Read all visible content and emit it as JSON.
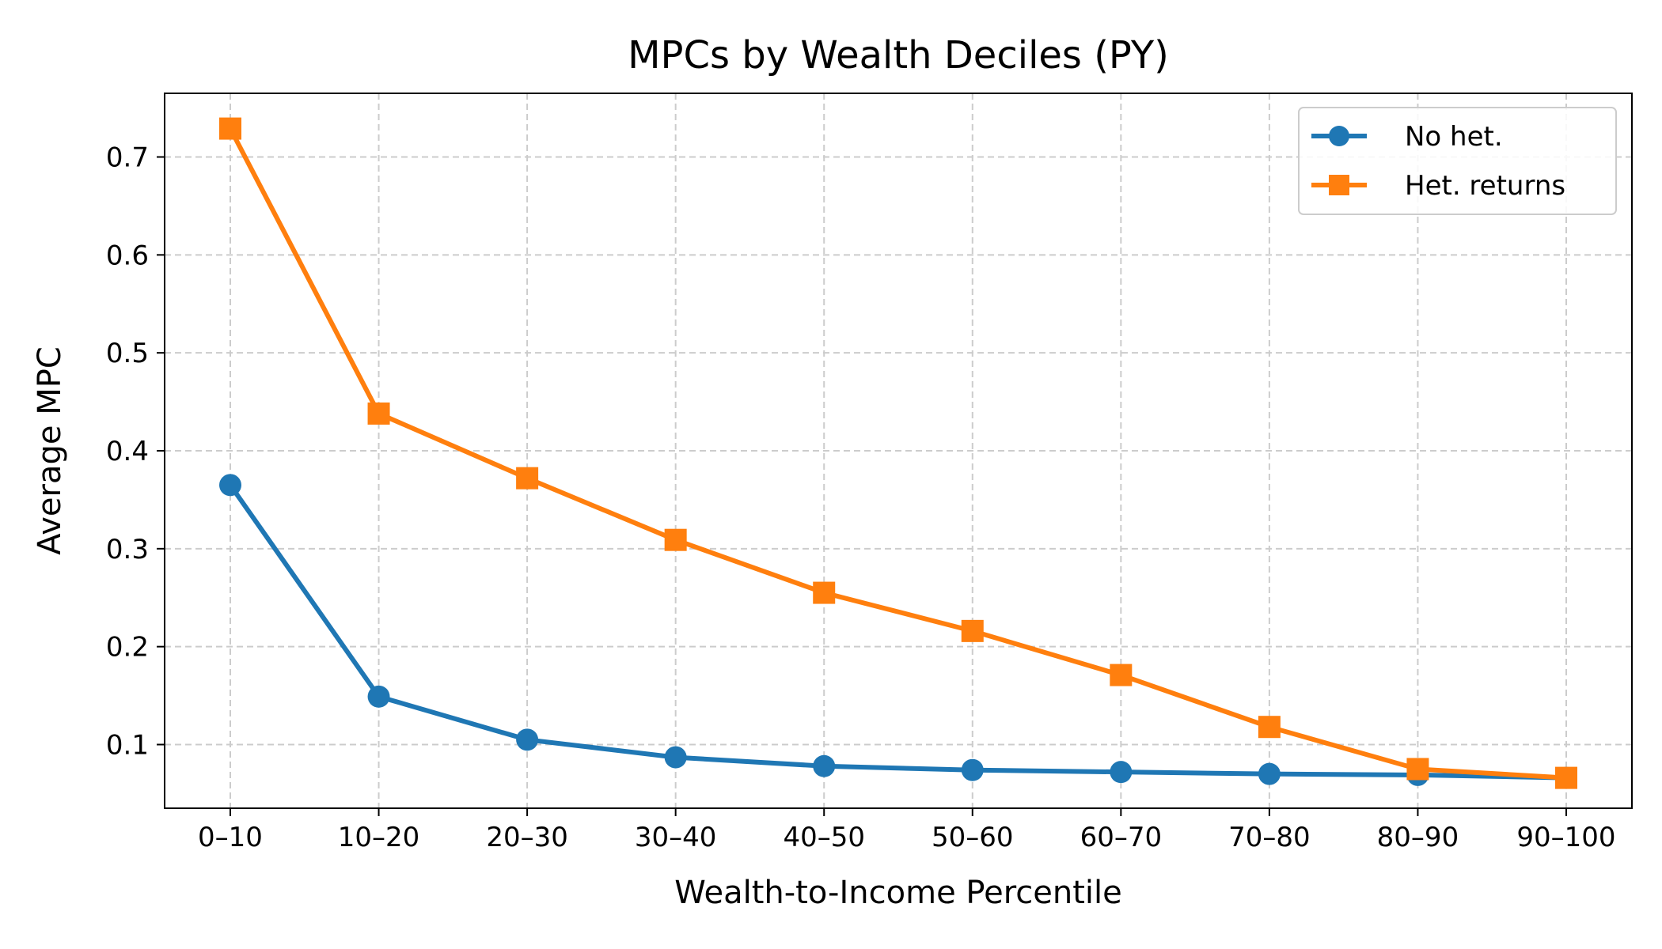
{
  "chart_data": {
    "type": "line",
    "title": "MPCs by Wealth Deciles (PY)",
    "xlabel": "Wealth-to-Income Percentile",
    "ylabel": "Average MPC",
    "categories": [
      "0–10",
      "10–20",
      "20–30",
      "30–40",
      "40–50",
      "50–60",
      "60–70",
      "70–80",
      "80–90",
      "90–100"
    ],
    "yticks": [
      "0.1",
      "0.2",
      "0.3",
      "0.4",
      "0.5",
      "0.6",
      "0.7"
    ],
    "ylim": [
      0.035,
      0.765
    ],
    "grid": true,
    "legend_position": "top-right",
    "series": [
      {
        "name": "No het.",
        "marker": "circle",
        "color": "#1f77b4",
        "values": [
          0.365,
          0.149,
          0.105,
          0.087,
          0.078,
          0.074,
          0.072,
          0.07,
          0.069,
          0.066
        ]
      },
      {
        "name": "Het. returns",
        "marker": "square",
        "color": "#ff7f0e",
        "values": [
          0.729,
          0.438,
          0.372,
          0.309,
          0.255,
          0.216,
          0.171,
          0.118,
          0.075,
          0.066
        ]
      }
    ]
  }
}
